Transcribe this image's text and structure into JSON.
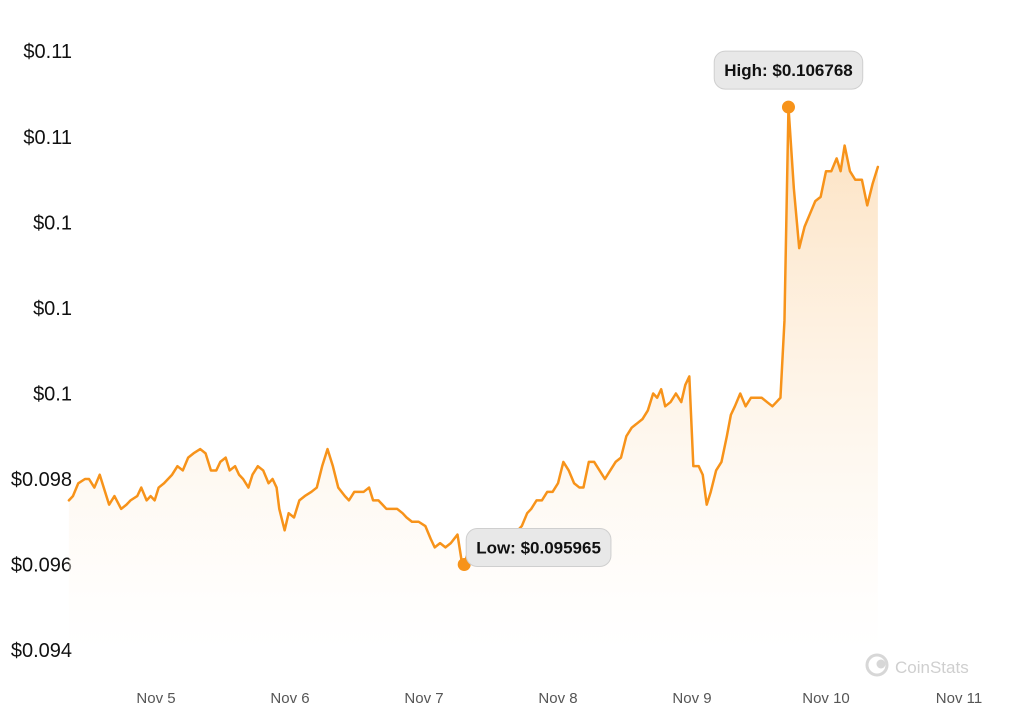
{
  "chart_data": {
    "type": "area",
    "title": "",
    "xlabel": "",
    "ylabel": "",
    "ylim": [
      0.094,
      0.1105
    ],
    "y_tick_values": [
      0.094,
      0.096,
      0.098,
      0.1,
      0.102,
      0.104,
      0.106
    ],
    "y_tick_labels": [
      "$0.094",
      "$0.096",
      "$0.098",
      "$0.1",
      "$0.1",
      "$0.1",
      "$0.11"
    ],
    "y_tick_top_label": "$0.11",
    "x_ticks": [
      {
        "label": "Nov 5",
        "x": 5.0
      },
      {
        "label": "Nov 6",
        "x": 6.0
      },
      {
        "label": "Nov 7",
        "x": 7.0
      },
      {
        "label": "Nov 8",
        "x": 8.0
      },
      {
        "label": "Nov 9",
        "x": 9.0
      },
      {
        "label": "Nov 10",
        "x": 10.0
      },
      {
        "label": "Nov 11",
        "x": 11.0
      }
    ],
    "x_range": [
      4.35,
      11.5
    ],
    "grid": false,
    "series": [
      {
        "color": "#f7931a",
        "points": [
          [
            4.35,
            0.0975
          ],
          [
            4.38,
            0.0976
          ],
          [
            4.42,
            0.0979
          ],
          [
            4.47,
            0.098
          ],
          [
            4.5,
            0.098
          ],
          [
            4.54,
            0.0978
          ],
          [
            4.58,
            0.0981
          ],
          [
            4.62,
            0.0977
          ],
          [
            4.65,
            0.0974
          ],
          [
            4.69,
            0.0976
          ],
          [
            4.74,
            0.0973
          ],
          [
            4.78,
            0.0974
          ],
          [
            4.81,
            0.0975
          ],
          [
            4.86,
            0.0976
          ],
          [
            4.89,
            0.0978
          ],
          [
            4.93,
            0.0975
          ],
          [
            4.96,
            0.0976
          ],
          [
            4.99,
            0.0975
          ],
          [
            5.02,
            0.0978
          ],
          [
            5.06,
            0.0979
          ],
          [
            5.12,
            0.0981
          ],
          [
            5.16,
            0.0983
          ],
          [
            5.2,
            0.0982
          ],
          [
            5.24,
            0.0985
          ],
          [
            5.28,
            0.0986
          ],
          [
            5.33,
            0.0987
          ],
          [
            5.37,
            0.0986
          ],
          [
            5.41,
            0.0982
          ],
          [
            5.45,
            0.0982
          ],
          [
            5.48,
            0.0984
          ],
          [
            5.52,
            0.0985
          ],
          [
            5.55,
            0.0982
          ],
          [
            5.59,
            0.0983
          ],
          [
            5.62,
            0.0981
          ],
          [
            5.65,
            0.098
          ],
          [
            5.69,
            0.0978
          ],
          [
            5.72,
            0.0981
          ],
          [
            5.76,
            0.0983
          ],
          [
            5.8,
            0.0982
          ],
          [
            5.84,
            0.0979
          ],
          [
            5.87,
            0.098
          ],
          [
            5.9,
            0.0978
          ],
          [
            5.92,
            0.0973
          ],
          [
            5.96,
            0.0968
          ],
          [
            5.99,
            0.0972
          ],
          [
            6.03,
            0.0971
          ],
          [
            6.07,
            0.0975
          ],
          [
            6.11,
            0.0976
          ],
          [
            6.16,
            0.0977
          ],
          [
            6.2,
            0.0978
          ],
          [
            6.24,
            0.0983
          ],
          [
            6.28,
            0.0987
          ],
          [
            6.32,
            0.0983
          ],
          [
            6.36,
            0.0978
          ],
          [
            6.41,
            0.0976
          ],
          [
            6.44,
            0.0975
          ],
          [
            6.48,
            0.0977
          ],
          [
            6.51,
            0.0977
          ],
          [
            6.55,
            0.0977
          ],
          [
            6.59,
            0.0978
          ],
          [
            6.62,
            0.0975
          ],
          [
            6.66,
            0.0975
          ],
          [
            6.69,
            0.0974
          ],
          [
            6.72,
            0.0973
          ],
          [
            6.76,
            0.0973
          ],
          [
            6.8,
            0.0973
          ],
          [
            6.84,
            0.0972
          ],
          [
            6.87,
            0.0971
          ],
          [
            6.91,
            0.097
          ],
          [
            6.96,
            0.097
          ],
          [
            7.01,
            0.0969
          ],
          [
            7.05,
            0.0966
          ],
          [
            7.08,
            0.0964
          ],
          [
            7.12,
            0.0965
          ],
          [
            7.16,
            0.0964
          ],
          [
            7.2,
            0.0965
          ],
          [
            7.25,
            0.0967
          ],
          [
            7.28,
            0.0961
          ],
          [
            7.3,
            0.096
          ],
          [
            7.34,
            0.0964
          ],
          [
            7.38,
            0.0968
          ],
          [
            7.41,
            0.0967
          ],
          [
            7.45,
            0.0968
          ],
          [
            7.49,
            0.0967
          ],
          [
            7.53,
            0.0967
          ],
          [
            7.57,
            0.0966
          ],
          [
            7.61,
            0.0967
          ],
          [
            7.66,
            0.0967
          ],
          [
            7.7,
            0.0968
          ],
          [
            7.73,
            0.0969
          ],
          [
            7.77,
            0.0972
          ],
          [
            7.8,
            0.0973
          ],
          [
            7.84,
            0.0975
          ],
          [
            7.88,
            0.0975
          ],
          [
            7.92,
            0.0977
          ],
          [
            7.96,
            0.0977
          ],
          [
            8.0,
            0.0979
          ],
          [
            8.04,
            0.0984
          ],
          [
            8.08,
            0.0982
          ],
          [
            8.12,
            0.0979
          ],
          [
            8.16,
            0.0978
          ],
          [
            8.19,
            0.0978
          ],
          [
            8.23,
            0.0984
          ],
          [
            8.27,
            0.0984
          ],
          [
            8.31,
            0.0982
          ],
          [
            8.35,
            0.098
          ],
          [
            8.39,
            0.0982
          ],
          [
            8.43,
            0.0984
          ],
          [
            8.47,
            0.0985
          ],
          [
            8.51,
            0.099
          ],
          [
            8.55,
            0.0992
          ],
          [
            8.59,
            0.0993
          ],
          [
            8.63,
            0.0994
          ],
          [
            8.67,
            0.0996
          ],
          [
            8.71,
            0.1
          ],
          [
            8.74,
            0.0999
          ],
          [
            8.77,
            0.1001
          ],
          [
            8.8,
            0.0997
          ],
          [
            8.84,
            0.0998
          ],
          [
            8.88,
            0.1
          ],
          [
            8.92,
            0.0998
          ],
          [
            8.95,
            0.1002
          ],
          [
            8.98,
            0.1004
          ],
          [
            9.01,
            0.0983
          ],
          [
            9.05,
            0.0983
          ],
          [
            9.08,
            0.0981
          ],
          [
            9.11,
            0.0974
          ],
          [
            9.14,
            0.0977
          ],
          [
            9.18,
            0.0982
          ],
          [
            9.22,
            0.0984
          ],
          [
            9.26,
            0.099
          ],
          [
            9.29,
            0.0995
          ],
          [
            9.32,
            0.0997
          ],
          [
            9.36,
            0.1
          ],
          [
            9.4,
            0.0997
          ],
          [
            9.44,
            0.0999
          ],
          [
            9.48,
            0.0999
          ],
          [
            9.52,
            0.0999
          ],
          [
            9.56,
            0.0998
          ],
          [
            9.6,
            0.0997
          ],
          [
            9.63,
            0.0998
          ],
          [
            9.66,
            0.0999
          ],
          [
            9.69,
            0.1017
          ],
          [
            9.72,
            0.1067
          ],
          [
            9.76,
            0.1048
          ],
          [
            9.8,
            0.1034
          ],
          [
            9.84,
            0.1039
          ],
          [
            9.88,
            0.1042
          ],
          [
            9.92,
            0.1045
          ],
          [
            9.96,
            0.1046
          ],
          [
            10.0,
            0.1052
          ],
          [
            10.04,
            0.1052
          ],
          [
            10.08,
            0.1055
          ],
          [
            10.11,
            0.1052
          ],
          [
            10.14,
            0.1058
          ],
          [
            10.18,
            0.1052
          ],
          [
            10.22,
            0.105
          ],
          [
            10.27,
            0.105
          ],
          [
            10.31,
            0.1044
          ],
          [
            10.35,
            0.1049
          ],
          [
            10.39,
            0.1053
          ]
        ]
      }
    ],
    "annotations": [
      {
        "label": "High: $0.106768",
        "x": 9.72,
        "y": 0.1067
      },
      {
        "label": "Low: $0.095965",
        "x": 7.3,
        "y": 0.096
      }
    ],
    "watermark": "CoinStats"
  }
}
